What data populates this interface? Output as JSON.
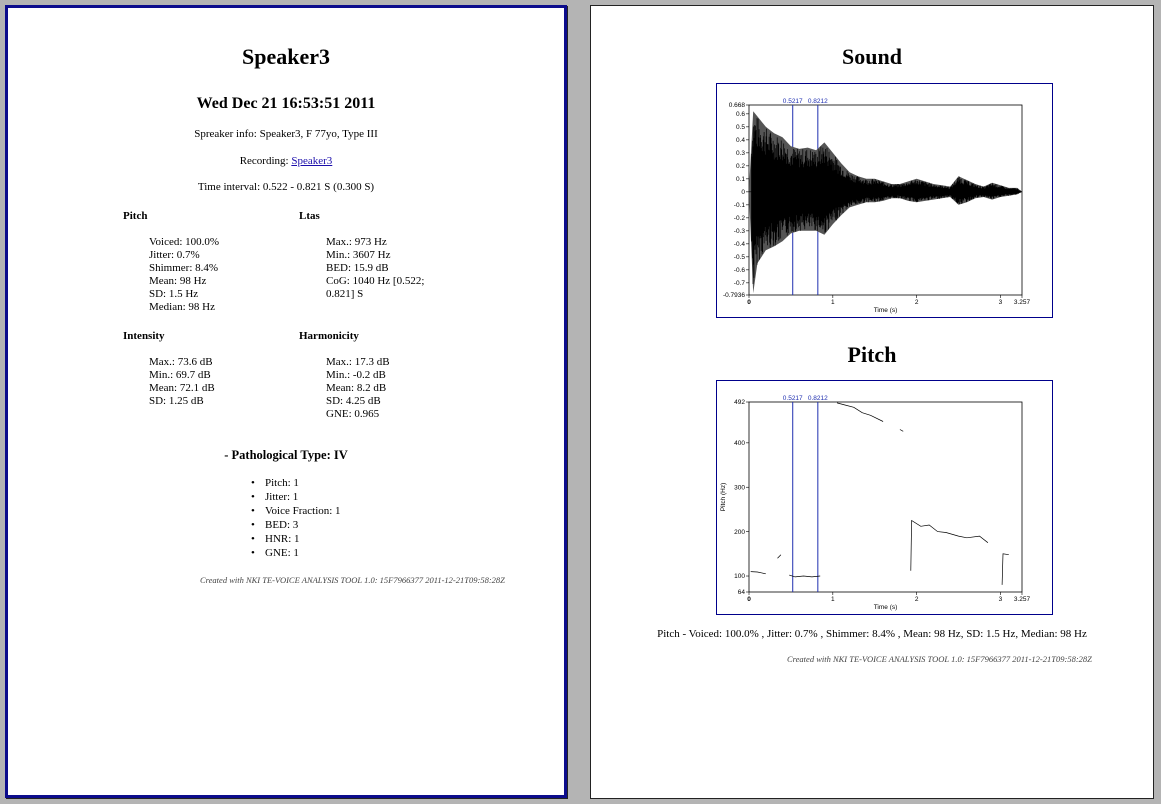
{
  "page1": {
    "title": "Speaker3",
    "date": "Wed Dec 21 16:53:51 2011",
    "speaker_info": "Spreaker info: Speaker3, F 77yo, Type III",
    "recording_label": "Recording:",
    "recording_link": "Speaker3",
    "time_interval": "Time interval: 0.522 - 0.821 S (0.300 S)",
    "pitch": {
      "heading": "Pitch",
      "items": [
        "Voiced: 100.0%",
        "Jitter: 0.7%",
        "Shimmer: 8.4%",
        "Mean: 98 Hz",
        "SD: 1.5 Hz",
        "Median: 98 Hz"
      ]
    },
    "ltas": {
      "heading": "Ltas",
      "items": [
        "Max.: 973 Hz",
        "Min.: 3607 Hz",
        "BED: 15.9 dB",
        "CoG: 1040 Hz [0.522;",
        "0.821] S"
      ]
    },
    "intensity": {
      "heading": "Intensity",
      "items": [
        "Max.: 73.6 dB",
        "Min.: 69.7 dB",
        "Mean: 72.1 dB",
        "SD: 1.25 dB"
      ]
    },
    "harmonicity": {
      "heading": "Harmonicity",
      "items": [
        "Max.: 17.3 dB",
        "Min.: -0.2 dB",
        "Mean: 8.2 dB",
        "SD: 4.25 dB",
        "GNE: 0.965"
      ]
    },
    "pathological_heading": "- Pathological Type: IV",
    "pathological_items": [
      "Pitch: 1",
      "Jitter: 1",
      "Voice Fraction: 1",
      "BED: 3",
      "HNR: 1",
      "GNE: 1"
    ],
    "footer": "Created with NKI TE-VOICE ANALYSIS TOOL 1.0: 15F7966377 2011-12-21T09:58:28Z"
  },
  "page2": {
    "sound_title": "Sound",
    "pitch_title": "Pitch",
    "pitch_summary": "Pitch - Voiced: 100.0% , Jitter: 0.7% , Shimmer: 8.4% , Mean: 98 Hz, SD: 1.5 Hz, Median: 98 Hz",
    "footer": "Created with NKI TE-VOICE ANALYSIS TOOL 1.0: 15F7966377 2011-12-21T09:58:28Z"
  },
  "chart_data": [
    {
      "type": "area",
      "title": "",
      "xlabel": "Time (s)",
      "ylabel": "",
      "xlim": [
        0,
        3.257
      ],
      "ylim": [
        -0.7936,
        0.668
      ],
      "x_ticks": [
        "0",
        "1",
        "2",
        "3",
        "3.257"
      ],
      "y_ticks": [
        "0.668",
        "0.6",
        "0.5",
        "0.4",
        "0.3",
        "0.2",
        "0.1",
        "0",
        "-0.1",
        "-0.2",
        "-0.3",
        "-0.4",
        "-0.5",
        "-0.6",
        "-0.7",
        "-0.7936"
      ],
      "y_tick_values": [
        0.668,
        0.6,
        0.5,
        0.4,
        0.3,
        0.2,
        0.1,
        0,
        -0.1,
        -0.2,
        -0.3,
        -0.4,
        -0.5,
        -0.6,
        -0.7,
        -0.7936
      ],
      "selection": [
        0.5217,
        0.8212
      ],
      "selection_labels": [
        "0.5217",
        "0.8212"
      ],
      "envelope_x": [
        0,
        0.05,
        0.1,
        0.2,
        0.3,
        0.4,
        0.5,
        0.6,
        0.7,
        0.8,
        0.9,
        1.0,
        1.1,
        1.2,
        1.3,
        1.4,
        1.5,
        1.6,
        1.7,
        1.8,
        1.9,
        2.0,
        2.1,
        2.2,
        2.3,
        2.4,
        2.5,
        2.6,
        2.7,
        2.8,
        2.9,
        3.0,
        3.1,
        3.2,
        3.257
      ],
      "envelope_max": [
        0.02,
        0.62,
        0.58,
        0.5,
        0.45,
        0.42,
        0.35,
        0.33,
        0.34,
        0.32,
        0.38,
        0.3,
        0.22,
        0.15,
        0.12,
        0.1,
        0.1,
        0.08,
        0.06,
        0.06,
        0.08,
        0.1,
        0.08,
        0.06,
        0.05,
        0.04,
        0.12,
        0.09,
        0.06,
        0.04,
        0.07,
        0.05,
        0.03,
        0.03,
        0.0
      ],
      "envelope_min": [
        -0.02,
        -0.78,
        -0.55,
        -0.45,
        -0.42,
        -0.38,
        -0.32,
        -0.3,
        -0.3,
        -0.3,
        -0.33,
        -0.25,
        -0.18,
        -0.12,
        -0.1,
        -0.08,
        -0.08,
        -0.07,
        -0.05,
        -0.05,
        -0.07,
        -0.08,
        -0.07,
        -0.06,
        -0.05,
        -0.04,
        -0.1,
        -0.08,
        -0.05,
        -0.04,
        -0.06,
        -0.04,
        -0.03,
        -0.02,
        0.0
      ]
    },
    {
      "type": "line",
      "title": "",
      "xlabel": "Time (s)",
      "ylabel": "Pitch (Hz)",
      "xlim": [
        0,
        3.257
      ],
      "ylim": [
        64,
        492
      ],
      "x_ticks": [
        "0",
        "1",
        "2",
        "3",
        "3.257"
      ],
      "y_ticks": [
        "492",
        "400",
        "300",
        "200",
        "100",
        "64"
      ],
      "y_tick_values": [
        492,
        400,
        300,
        200,
        100,
        64
      ],
      "selection": [
        0.5217,
        0.8212
      ],
      "selection_labels": [
        "0.5217",
        "0.8212"
      ],
      "series": [
        {
          "values": [
            [
              0.02,
              110
            ],
            [
              0.1,
              109
            ],
            [
              0.2,
              105
            ]
          ]
        },
        {
          "values": [
            [
              0.34,
              140
            ],
            [
              0.38,
              148
            ]
          ]
        },
        {
          "values": [
            [
              0.48,
              102
            ],
            [
              0.55,
              98
            ],
            [
              0.65,
              100
            ],
            [
              0.75,
              98
            ],
            [
              0.85,
              100
            ]
          ]
        },
        {
          "values": [
            [
              1.05,
              490
            ],
            [
              1.15,
              485
            ],
            [
              1.25,
              480
            ],
            [
              1.35,
              468
            ],
            [
              1.45,
              462
            ],
            [
              1.6,
              448
            ]
          ]
        },
        {
          "values": [
            [
              1.8,
              430
            ],
            [
              1.84,
              426
            ]
          ]
        },
        {
          "values": [
            [
              1.93,
              112
            ],
            [
              1.94,
              225
            ],
            [
              2.05,
              212
            ],
            [
              2.15,
              215
            ],
            [
              2.25,
              200
            ],
            [
              2.35,
              198
            ],
            [
              2.5,
              190
            ],
            [
              2.6,
              186
            ],
            [
              2.75,
              190
            ],
            [
              2.85,
              175
            ]
          ]
        },
        {
          "values": [
            [
              3.02,
              80
            ],
            [
              3.03,
              150
            ],
            [
              3.1,
              148
            ]
          ]
        }
      ]
    }
  ]
}
